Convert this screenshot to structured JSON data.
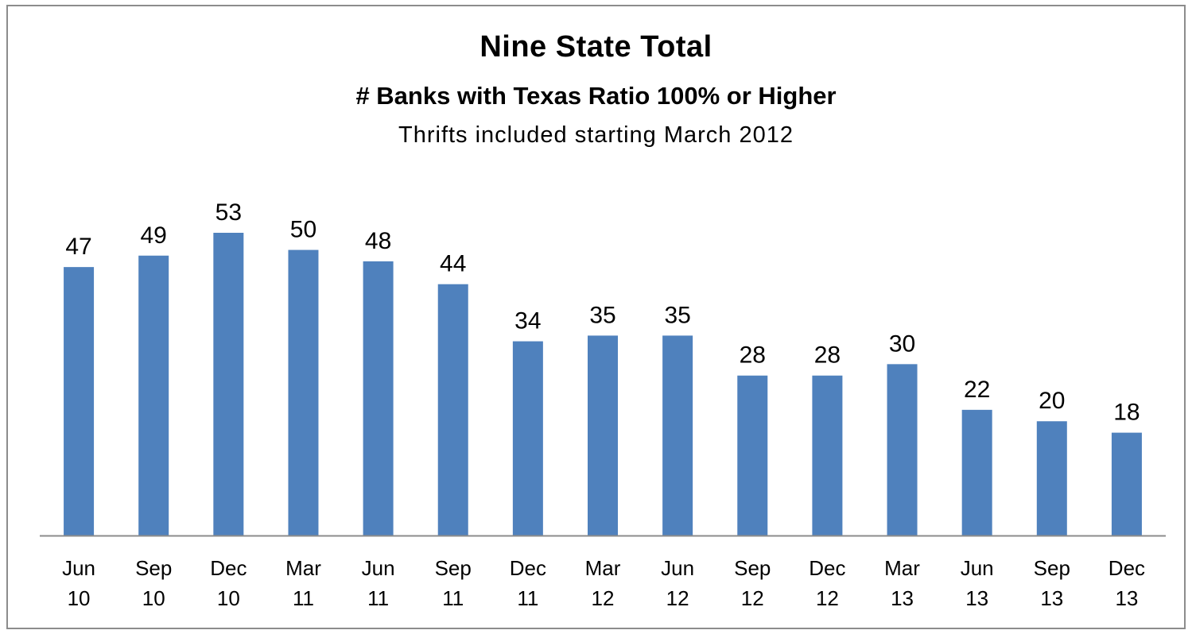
{
  "chart_data": {
    "type": "bar",
    "title": "Nine State Total",
    "subtitle": "# Banks with Texas Ratio 100% or Higher",
    "note": "Thrifts included starting March 2012",
    "categories": [
      [
        "Jun",
        "10"
      ],
      [
        "Sep",
        "10"
      ],
      [
        "Dec",
        "10"
      ],
      [
        "Mar",
        "11"
      ],
      [
        "Jun",
        "11"
      ],
      [
        "Sep",
        "11"
      ],
      [
        "Dec",
        "11"
      ],
      [
        "Mar",
        "12"
      ],
      [
        "Jun",
        "12"
      ],
      [
        "Sep",
        "12"
      ],
      [
        "Dec",
        "12"
      ],
      [
        "Mar",
        "13"
      ],
      [
        "Jun",
        "13"
      ],
      [
        "Sep",
        "13"
      ],
      [
        "Dec",
        "13"
      ]
    ],
    "values": [
      47,
      49,
      53,
      50,
      48,
      44,
      34,
      35,
      35,
      28,
      28,
      30,
      22,
      20,
      18
    ],
    "ylim": [
      0,
      53
    ],
    "grid": false,
    "legend": "none",
    "bar_color": "#4f81bd",
    "axis_color": "#8c8c8c"
  }
}
